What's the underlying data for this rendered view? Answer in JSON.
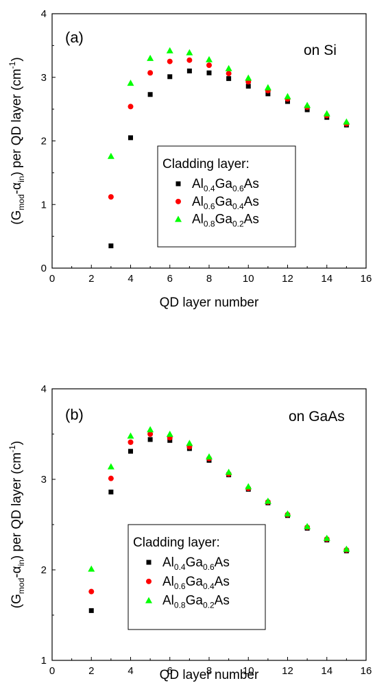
{
  "chart_data": [
    {
      "type": "scatter",
      "panel_label": "(a)",
      "substrate": "on Si",
      "ylabel": {
        "prefix": "(G",
        "sub1": "mod",
        "mid": "-α",
        "sub2": "in",
        "suffix": ") per QD layer (cm",
        "sup": "-1",
        "end": ")"
      },
      "xlabel": "QD layer number",
      "xlim": [
        0,
        16
      ],
      "ylim": [
        0,
        4
      ],
      "xticks": [
        0,
        2,
        4,
        6,
        8,
        10,
        12,
        14,
        16
      ],
      "yticks": [
        0,
        1,
        2,
        3,
        4
      ],
      "legend_title": "Cladding layer:",
      "legend_position": "center-right",
      "series": [
        {
          "name_parts": [
            "Al",
            "0.4",
            "Ga",
            "0.6",
            "As"
          ],
          "marker": "square",
          "color": "#000000",
          "x": [
            3,
            4,
            5,
            6,
            7,
            8,
            9,
            10,
            11,
            12,
            13,
            14,
            15
          ],
          "y": [
            0.35,
            2.05,
            2.73,
            3.01,
            3.1,
            3.07,
            2.98,
            2.86,
            2.74,
            2.62,
            2.49,
            2.37,
            2.25
          ]
        },
        {
          "name_parts": [
            "Al",
            "0.6",
            "Ga",
            "0.4",
            "As"
          ],
          "marker": "circle",
          "color": "#ff0000",
          "x": [
            3,
            4,
            5,
            6,
            7,
            8,
            9,
            10,
            11,
            12,
            13,
            14,
            15
          ],
          "y": [
            1.12,
            2.54,
            3.07,
            3.25,
            3.27,
            3.19,
            3.06,
            2.93,
            2.79,
            2.66,
            2.53,
            2.4,
            2.27
          ]
        },
        {
          "name_parts": [
            "Al",
            "0.8",
            "Ga",
            "0.2",
            "As"
          ],
          "marker": "triangle",
          "color": "#00ff00",
          "x": [
            3,
            4,
            5,
            6,
            7,
            8,
            9,
            10,
            11,
            12,
            13,
            14,
            15
          ],
          "y": [
            1.76,
            2.91,
            3.3,
            3.42,
            3.39,
            3.28,
            3.14,
            2.99,
            2.84,
            2.7,
            2.56,
            2.43,
            2.3
          ]
        }
      ]
    },
    {
      "type": "scatter",
      "panel_label": "(b)",
      "substrate": "on GaAs",
      "ylabel": {
        "prefix": "(G",
        "sub1": "mod",
        "mid": "-α",
        "sub2": "in",
        "suffix": ") per QD layer (cm",
        "sup": "-1",
        "end": ")"
      },
      "xlabel": "QD layer number",
      "xlim": [
        0,
        16
      ],
      "ylim": [
        1,
        4
      ],
      "xticks": [
        0,
        2,
        4,
        6,
        8,
        10,
        12,
        14,
        16
      ],
      "yticks": [
        1,
        2,
        3,
        4
      ],
      "legend_title": "Cladding layer:",
      "legend_position": "bottom-center",
      "series": [
        {
          "name_parts": [
            "Al",
            "0.4",
            "Ga",
            "0.6",
            "As"
          ],
          "marker": "square",
          "color": "#000000",
          "x": [
            2,
            3,
            4,
            5,
            6,
            7,
            8,
            9,
            10,
            11,
            12,
            13,
            14,
            15
          ],
          "y": [
            1.55,
            2.86,
            3.31,
            3.44,
            3.43,
            3.34,
            3.21,
            3.05,
            2.89,
            2.74,
            2.6,
            2.46,
            2.33,
            2.21
          ]
        },
        {
          "name_parts": [
            "Al",
            "0.6",
            "Ga",
            "0.4",
            "As"
          ],
          "marker": "circle",
          "color": "#ff0000",
          "x": [
            2,
            3,
            4,
            5,
            6,
            7,
            8,
            9,
            10,
            11,
            12,
            13,
            14,
            15
          ],
          "y": [
            1.76,
            3.01,
            3.41,
            3.5,
            3.46,
            3.36,
            3.23,
            3.06,
            2.9,
            2.75,
            2.61,
            2.47,
            2.34,
            2.22
          ]
        },
        {
          "name_parts": [
            "Al",
            "0.8",
            "Ga",
            "0.2",
            "As"
          ],
          "marker": "triangle",
          "color": "#00ff00",
          "x": [
            2,
            3,
            4,
            5,
            6,
            7,
            8,
            9,
            10,
            11,
            12,
            13,
            14,
            15
          ],
          "y": [
            2.01,
            3.14,
            3.48,
            3.55,
            3.5,
            3.4,
            3.25,
            3.08,
            2.92,
            2.76,
            2.62,
            2.48,
            2.35,
            2.23
          ]
        }
      ]
    }
  ]
}
